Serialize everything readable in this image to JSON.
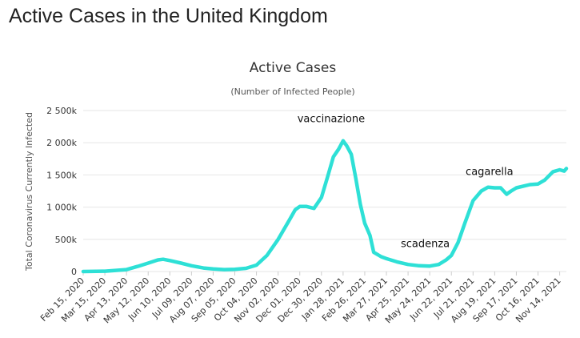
{
  "page": {
    "heading": "Active Cases in the United Kingdom"
  },
  "chart_data": {
    "type": "line",
    "title": "Active Cases",
    "subtitle": "(Number of Infected People)",
    "ylabel": "Total Coronavirus Currently Infected",
    "xlabel": "",
    "ylim": [
      0,
      2500000
    ],
    "grid": true,
    "yticks": [
      {
        "value": 0,
        "label": "0"
      },
      {
        "value": 500000,
        "label": "500k"
      },
      {
        "value": 1000000,
        "label": "1 000k"
      },
      {
        "value": 1500000,
        "label": "1 500k"
      },
      {
        "value": 2000000,
        "label": "2 000k"
      },
      {
        "value": 2500000,
        "label": "2 500k"
      }
    ],
    "xticks": [
      "Feb 15, 2020",
      "Mar 15, 2020",
      "Apr 13, 2020",
      "May 12, 2020",
      "Jun 10, 2020",
      "Jul 09, 2020",
      "Aug 07, 2020",
      "Sep 05, 2020",
      "Oct 04, 2020",
      "Nov 02, 2020",
      "Dec 01, 2020",
      "Dec 30, 2020",
      "Jan 28, 2021",
      "Feb 26, 2021",
      "Mar 27, 2021",
      "Apr 25, 2021",
      "May 24, 2021",
      "Jun 22, 2021",
      "Jul 21, 2021",
      "Aug 19, 2021",
      "Sep 17, 2021",
      "Oct 16, 2021",
      "Nov 14, 2021"
    ],
    "series": [
      {
        "color": "#2ee0d6",
        "points": [
          [
            "2020-02-15",
            0
          ],
          [
            "2020-03-15",
            5000
          ],
          [
            "2020-04-13",
            30000
          ],
          [
            "2020-04-28",
            80000
          ],
          [
            "2020-05-12",
            130000
          ],
          [
            "2020-05-25",
            180000
          ],
          [
            "2020-06-01",
            190000
          ],
          [
            "2020-06-10",
            170000
          ],
          [
            "2020-06-25",
            130000
          ],
          [
            "2020-07-09",
            90000
          ],
          [
            "2020-07-25",
            55000
          ],
          [
            "2020-08-07",
            40000
          ],
          [
            "2020-08-22",
            30000
          ],
          [
            "2020-09-05",
            35000
          ],
          [
            "2020-09-20",
            50000
          ],
          [
            "2020-10-04",
            100000
          ],
          [
            "2020-10-18",
            250000
          ],
          [
            "2020-11-02",
            500000
          ],
          [
            "2020-11-17",
            800000
          ],
          [
            "2020-11-25",
            960000
          ],
          [
            "2020-12-01",
            1010000
          ],
          [
            "2020-12-10",
            1010000
          ],
          [
            "2020-12-20",
            980000
          ],
          [
            "2020-12-30",
            1150000
          ],
          [
            "2021-01-08",
            1500000
          ],
          [
            "2021-01-15",
            1780000
          ],
          [
            "2021-01-22",
            1900000
          ],
          [
            "2021-01-28",
            2030000
          ],
          [
            "2021-02-02",
            1950000
          ],
          [
            "2021-02-08",
            1820000
          ],
          [
            "2021-02-14",
            1450000
          ],
          [
            "2021-02-20",
            1050000
          ],
          [
            "2021-02-26",
            750000
          ],
          [
            "2021-03-05",
            560000
          ],
          [
            "2021-03-10",
            300000
          ],
          [
            "2021-03-20",
            230000
          ],
          [
            "2021-03-27",
            200000
          ],
          [
            "2021-04-10",
            150000
          ],
          [
            "2021-04-25",
            110000
          ],
          [
            "2021-05-10",
            90000
          ],
          [
            "2021-05-24",
            85000
          ],
          [
            "2021-06-05",
            110000
          ],
          [
            "2021-06-15",
            180000
          ],
          [
            "2021-06-22",
            250000
          ],
          [
            "2021-07-01",
            450000
          ],
          [
            "2021-07-10",
            750000
          ],
          [
            "2021-07-21",
            1100000
          ],
          [
            "2021-08-01",
            1250000
          ],
          [
            "2021-08-10",
            1310000
          ],
          [
            "2021-08-19",
            1300000
          ],
          [
            "2021-08-27",
            1300000
          ],
          [
            "2021-09-04",
            1200000
          ],
          [
            "2021-09-10",
            1250000
          ],
          [
            "2021-09-17",
            1300000
          ],
          [
            "2021-09-28",
            1330000
          ],
          [
            "2021-10-05",
            1350000
          ],
          [
            "2021-10-16",
            1360000
          ],
          [
            "2021-10-25",
            1420000
          ],
          [
            "2021-11-05",
            1550000
          ],
          [
            "2021-11-14",
            1580000
          ],
          [
            "2021-11-20",
            1560000
          ],
          [
            "2021-11-23",
            1600000
          ]
        ]
      }
    ],
    "annotations": [
      {
        "text": "vaccinazione",
        "date": "2021-01-12",
        "value": 2320000
      },
      {
        "text": "scadenza",
        "date": "2021-05-18",
        "value": 380000
      },
      {
        "text": "cagarella",
        "date": "2021-08-12",
        "value": 1500000
      }
    ]
  }
}
